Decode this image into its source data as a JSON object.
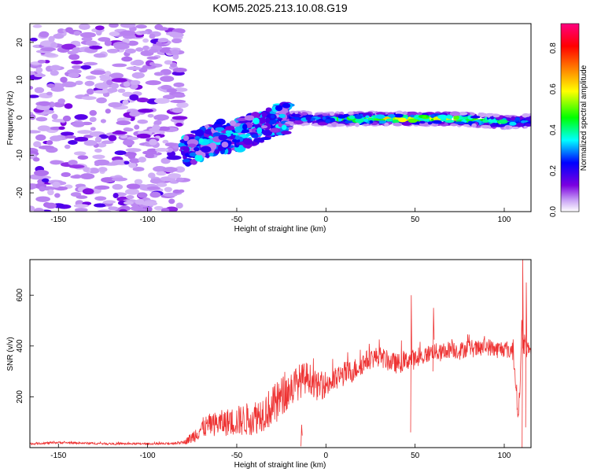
{
  "title": "KOM5.2025.213.10.08.G19",
  "chart_data": [
    {
      "type": "heatmap",
      "xlabel": "Height of straight line (km)",
      "ylabel": "Frequency (Hz)",
      "xlim": [
        -166,
        115
      ],
      "ylim": [
        -25,
        25
      ],
      "x_ticks": [
        -150,
        -100,
        -50,
        0,
        50,
        100
      ],
      "y_ticks": [
        -20,
        -10,
        0,
        10,
        20
      ],
      "colorbar": {
        "label": "Normalized spectral amplitude",
        "range": [
          0,
          0.92
        ],
        "ticks": [
          0.0,
          0.2,
          0.4,
          0.6,
          0.8
        ],
        "colors": [
          "#ffffff",
          "#c9a3f5",
          "#7b00e0",
          "#0000ff",
          "#00ffff",
          "#00ff00",
          "#ffff00",
          "#ff8000",
          "#ff0000",
          "#ff0080"
        ]
      },
      "features": [
        {
          "region": "noise",
          "x_range": [
            -166,
            -80
          ],
          "freq_range": [
            -25,
            25
          ],
          "amplitude": 0.05
        },
        {
          "region": "rising_signal",
          "x": [
            -80,
            -70,
            -60,
            -50,
            -40,
            -30,
            -20
          ],
          "freq": [
            -9,
            -7,
            -5,
            -5,
            -3,
            -1,
            0
          ],
          "amplitude": 0.25
        },
        {
          "region": "steady_line",
          "x": [
            -20,
            0,
            20,
            40,
            60,
            80,
            100,
            115
          ],
          "freq": [
            0,
            -0.5,
            -0.3,
            -0.3,
            -0.3,
            -0.5,
            -1.2,
            -1.0
          ],
          "amplitude": [
            0.35,
            0.4,
            0.6,
            0.7,
            0.7,
            0.65,
            0.5,
            0.4
          ]
        }
      ],
      "grid": false
    },
    {
      "type": "line",
      "xlabel": "Height of straight line (km)",
      "ylabel": "SNR (v/v)",
      "xlim": [
        -166,
        115
      ],
      "ylim": [
        0,
        740
      ],
      "x_ticks": [
        -150,
        -100,
        -50,
        0,
        50,
        100
      ],
      "y_ticks": [
        200,
        400,
        600
      ],
      "color": "#ee3333",
      "series": [
        {
          "x": [
            -166,
            -150,
            -120,
            -90,
            -85,
            -80,
            -75,
            -70,
            -65,
            -60,
            -55,
            -50,
            -45,
            -40,
            -35,
            -30,
            -25,
            -20,
            -15,
            -10,
            -5,
            0,
            5,
            10,
            15,
            20,
            25,
            30,
            35,
            40,
            45,
            47,
            50,
            55,
            60,
            65,
            70,
            75,
            80,
            85,
            90,
            95,
            100,
            105,
            108,
            110,
            112,
            115
          ],
          "values": [
            15,
            20,
            15,
            15,
            18,
            20,
            40,
            75,
            90,
            95,
            100,
            105,
            110,
            120,
            140,
            160,
            200,
            230,
            260,
            280,
            240,
            250,
            265,
            290,
            300,
            330,
            350,
            360,
            340,
            330,
            340,
            350,
            345,
            360,
            380,
            370,
            390,
            380,
            395,
            385,
            400,
            385,
            390,
            380,
            120,
            450,
            390,
            375
          ],
          "noise_amplitude": [
            4,
            4,
            4,
            4,
            5,
            6,
            25,
            40,
            45,
            50,
            55,
            60,
            65,
            70,
            75,
            80,
            80,
            75,
            70,
            60,
            55,
            55,
            50,
            50,
            45,
            45,
            40,
            40,
            40,
            40,
            40,
            40,
            40,
            35,
            35,
            35,
            35,
            35,
            35,
            35,
            35,
            35,
            35,
            40,
            40,
            60,
            40,
            20
          ],
          "spikes": [
            {
              "x": -14,
              "top": 90,
              "bottom": 5
            },
            {
              "x": 47.5,
              "top": 600,
              "bottom": 60
            },
            {
              "x": 60,
              "top": 550,
              "bottom": 300
            },
            {
              "x": 110,
              "top": 740,
              "bottom": 0
            },
            {
              "x": 112,
              "top": 650,
              "bottom": 80
            }
          ]
        }
      ],
      "grid": false
    }
  ]
}
